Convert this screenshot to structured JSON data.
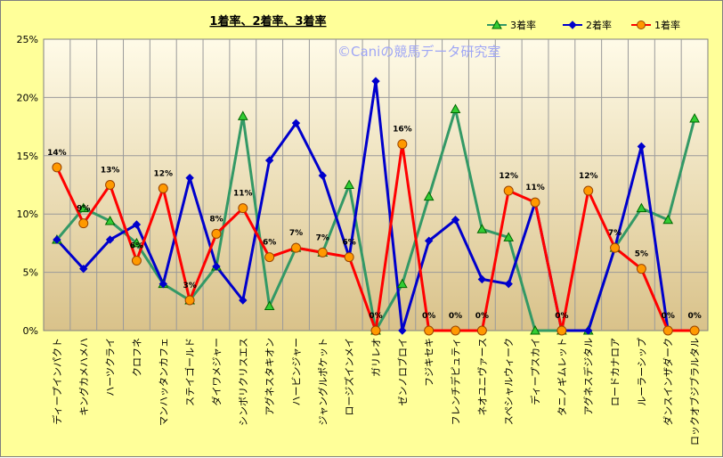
{
  "chart_data": {
    "type": "line",
    "title": "1着率、2着率、3着率",
    "watermark": "©Caniの競馬データ研究室",
    "xlabel": "",
    "ylabel": "",
    "ylim": [
      0,
      25
    ],
    "yticks": [
      "0%",
      "5%",
      "10%",
      "15%",
      "20%",
      "25%"
    ],
    "grid": true,
    "legend_position": "top-right",
    "categories": [
      "ディープインパクト",
      "キングカメハメハ",
      "ハーツクライ",
      "クロフネ",
      "マンハッタンカフェ",
      "ステイゴールド",
      "ダイワメジャー",
      "シンボリクリスエス",
      "アグネスタキオン",
      "ハービンジャー",
      "ジャングルポケット",
      "ロージズインメイ",
      "ガリレオ",
      "ゼンノロブロイ",
      "フジキセキ",
      "フレンチデピュティ",
      "ネオユニヴァース",
      "スペシャルウィーク",
      "ディープスカイ",
      "タニノギムレット",
      "アグネスデジタル",
      "ロードカナロア",
      "ルーラーシップ",
      "ダンスインザダーク",
      "ロックオブジブラルタル"
    ],
    "series": [
      {
        "name": "3着率",
        "color": "#339966",
        "marker": "triangle",
        "marker_fill": "#33cc33",
        "values": [
          7.8,
          10.5,
          9.4,
          7.5,
          4.0,
          2.6,
          5.5,
          18.4,
          2.1,
          7.1,
          6.7,
          12.5,
          0,
          4.0,
          11.5,
          19.0,
          8.7,
          8.0,
          0,
          0,
          0,
          7.1,
          10.5,
          9.5,
          18.2
        ]
      },
      {
        "name": "2着率",
        "color": "#0000cc",
        "marker": "diamond",
        "marker_fill": "#0000cc",
        "values": [
          7.8,
          5.3,
          7.8,
          9.1,
          4.0,
          13.1,
          5.5,
          2.6,
          14.6,
          17.8,
          13.3,
          6.3,
          21.4,
          0,
          7.7,
          9.5,
          4.4,
          4.0,
          11.0,
          0,
          0,
          7.1,
          15.8,
          0,
          0
        ]
      },
      {
        "name": "1着率",
        "color": "#ff0000",
        "marker": "circle",
        "marker_fill": "#ff9900",
        "values": [
          14.0,
          9.2,
          12.5,
          6.0,
          12.2,
          2.6,
          8.3,
          10.5,
          6.3,
          7.1,
          6.7,
          6.3,
          0,
          16.0,
          0,
          0,
          0,
          12.0,
          11.0,
          0,
          12.0,
          7.1,
          5.3,
          0,
          0
        ]
      }
    ],
    "data_labels": [
      "14%",
      "9%",
      "13%",
      "6%",
      "12%",
      "3%",
      "8%",
      "11%",
      "6%",
      "7%",
      "7%",
      "6%",
      "0%",
      "16%",
      "0%",
      "0%",
      "0%",
      "12%",
      "11%",
      "0%",
      "12%",
      "7%",
      "5%",
      "0%",
      "0%"
    ]
  }
}
